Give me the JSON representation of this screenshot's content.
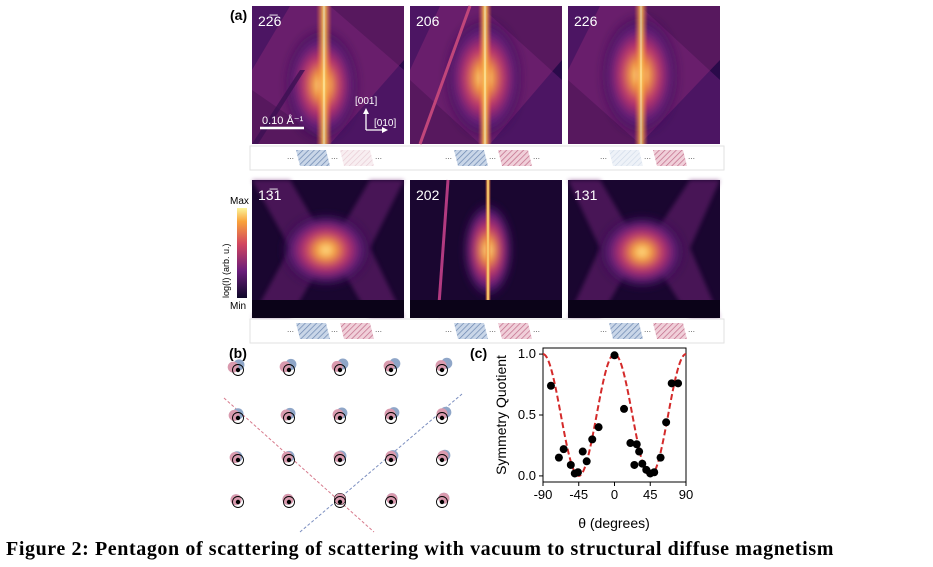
{
  "figure": {
    "panel_a_label": "(a)",
    "panel_b_label": "(b)",
    "panel_c_label": "(c)",
    "scalebar_label": "0.10 Å⁻¹",
    "axis_up": "[001]",
    "axis_right": "[010]",
    "colorbar": {
      "label": "log(I) (arb. u.)",
      "max": "Max",
      "min": "Min"
    },
    "reflections_top": [
      "22̅6",
      "206",
      "226"
    ],
    "reflections_bottom": [
      "13̅1",
      "202",
      "131"
    ],
    "caption_fragment": "Figure 2: Pentagon of scattering of scattering with vacuum to structural diffuse magnetism",
    "colors": {
      "blue_domain": "#8fa6c8",
      "pink_domain": "#d99aae",
      "fit_line": "#d42a2a",
      "points": "#000000"
    }
  },
  "chart_data": {
    "type": "scatter",
    "title": "",
    "xlabel": "θ (degrees)",
    "ylabel": "Symmetry Quotient",
    "xlim": [
      -90,
      90
    ],
    "ylim": [
      -0.05,
      1.05
    ],
    "xticks": [
      "-90",
      "-45",
      "0",
      "45",
      "90"
    ],
    "yticks": [
      "0.0",
      "0.5",
      "1.0"
    ],
    "series": [
      {
        "kind": "points",
        "x": [
          -80,
          -70,
          -64,
          -55,
          -50,
          -46,
          -40,
          -35,
          -28,
          -20,
          0,
          12,
          20,
          25,
          28,
          31,
          35,
          40,
          45,
          50,
          58,
          65,
          72,
          80
        ],
        "y": [
          0.74,
          0.15,
          0.22,
          0.09,
          0.02,
          0.03,
          0.2,
          0.12,
          0.3,
          0.4,
          0.99,
          0.55,
          0.27,
          0.09,
          0.26,
          0.2,
          0.1,
          0.05,
          0.02,
          0.03,
          0.15,
          0.44,
          0.76,
          0.76
        ],
        "color": "#000000"
      },
      {
        "kind": "line",
        "style": "dashed",
        "description_fn": "cos^2(2θ)-like",
        "color": "#d42a2a"
      }
    ]
  }
}
